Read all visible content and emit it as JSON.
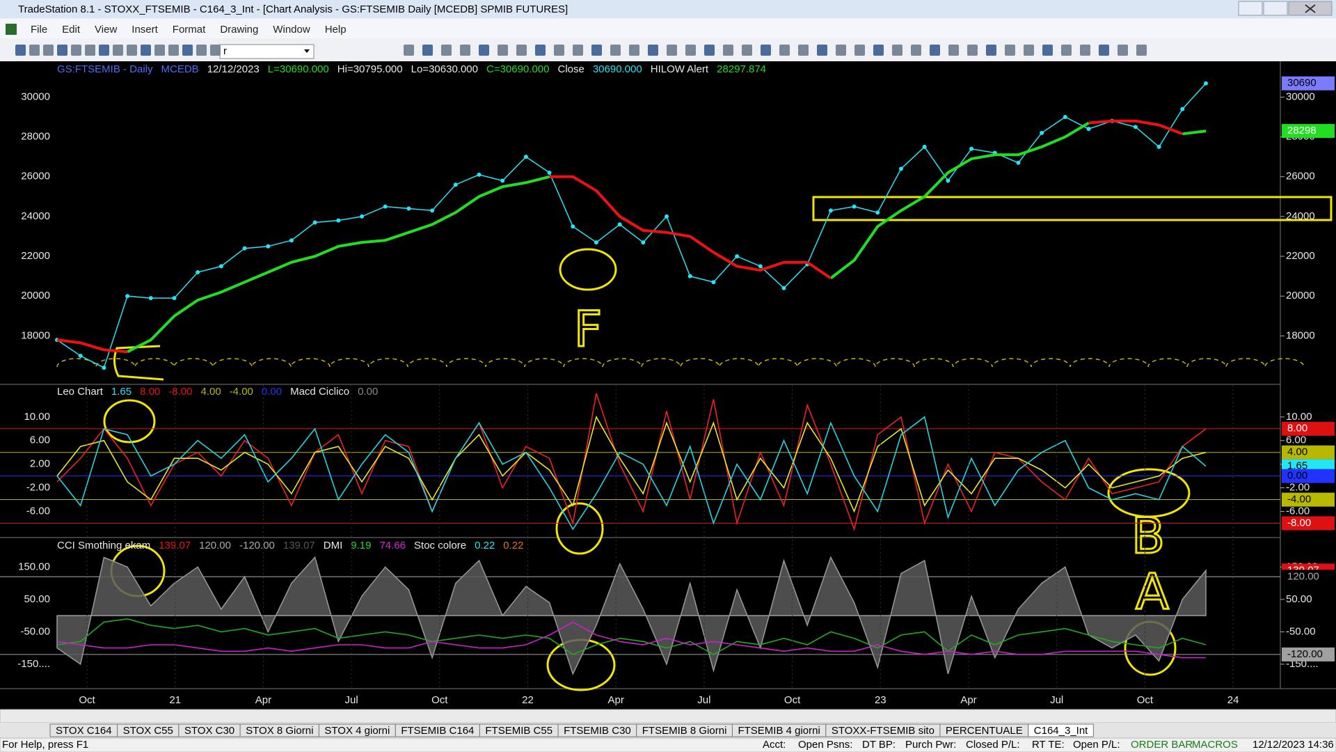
{
  "window": {
    "title": "TradeStation 8.1 - STOXX_FTSEMIB - C164_3_Int - [Chart Analysis - GS:FTSEMIB  Daily  [MCEDB] SPMIB FUTURES]"
  },
  "menu": [
    "File",
    "Edit",
    "View",
    "Insert",
    "Format",
    "Drawing",
    "Window",
    "Help"
  ],
  "toolbar": {
    "symbol_box": "r"
  },
  "time_axis": {
    "labels": [
      "Oct",
      "21",
      "Apr",
      "Jul",
      "Oct",
      "22",
      "Apr",
      "Jul",
      "Oct",
      "23",
      "Apr",
      "Jul",
      "Oct",
      "24"
    ]
  },
  "chart_data": [
    {
      "type": "line",
      "header": [
        {
          "text": "GS:FTSEMIB - Daily",
          "color": "#4f6cf5"
        },
        {
          "text": "MCEDB",
          "color": "#4f6cf5"
        },
        {
          "text": "12/12/2023",
          "color": "#e8e8e8"
        },
        {
          "text": "L=30690.000",
          "color": "#22dd22"
        },
        {
          "text": "Hi=30795.000",
          "color": "#e8e8e8"
        },
        {
          "text": "Lo=30630.000",
          "color": "#e8e8e8"
        },
        {
          "text": "C=30690.000",
          "color": "#22dd22"
        },
        {
          "text": "Close",
          "color": "#e8e8e8"
        },
        {
          "text": "30690.000",
          "color": "#22e5f5"
        },
        {
          "text": "HILOW Alert",
          "color": "#e8e8e8"
        },
        {
          "text": "28297.874",
          "color": "#22dd22"
        }
      ],
      "ylim": [
        15600,
        31800
      ],
      "yticks": [
        18000,
        20000,
        22000,
        24000,
        26000,
        28000,
        30000
      ],
      "series": [
        {
          "type": "dots",
          "color": "#22e5f5",
          "values": [
            17800,
            17000,
            16400,
            20000,
            19900,
            19900,
            21200,
            21500,
            22400,
            22500,
            22800,
            23700,
            23800,
            24000,
            24500,
            24400,
            24300,
            25600,
            26100,
            25800,
            27000,
            26200,
            23500,
            22700,
            23600,
            22700,
            24000,
            21000,
            20700,
            22000,
            21500,
            20400,
            21600,
            24300,
            24500,
            24200,
            26400,
            27500,
            25800,
            27400,
            27200,
            26700,
            28200,
            29000,
            28400,
            28800,
            28500,
            27500,
            29400,
            30690
          ]
        },
        {
          "type": "line",
          "color": "#22dd22",
          "values": [
            null,
            null,
            null,
            17200,
            17800,
            19000,
            19800,
            20200,
            20700,
            21200,
            21700,
            22000,
            22500,
            22700,
            22800,
            23200,
            23600,
            24200,
            25000,
            25500,
            25700,
            26000,
            null,
            null,
            null,
            null,
            null,
            null,
            null,
            null,
            null,
            null,
            null,
            20900,
            21800,
            23500,
            24300,
            25000,
            26200,
            26900,
            27100,
            27100,
            27500,
            28000,
            28700,
            null,
            null,
            null,
            28150,
            28298
          ]
        },
        {
          "type": "line",
          "color": "#ee1111",
          "values": [
            17800,
            17650,
            17300,
            17200,
            null,
            null,
            null,
            null,
            null,
            null,
            null,
            null,
            null,
            null,
            null,
            null,
            null,
            null,
            null,
            null,
            null,
            26000,
            26000,
            25300,
            24000,
            23300,
            23200,
            23000,
            22200,
            21500,
            21300,
            21700,
            21700,
            20900,
            null,
            null,
            null,
            null,
            null,
            null,
            null,
            null,
            null,
            null,
            28700,
            28800,
            28800,
            28600,
            28150,
            null
          ]
        }
      ],
      "badges": [
        {
          "value": 30690,
          "label": "30690",
          "color": "#7b7bff",
          "text_color": "#000000",
          "line": false
        },
        {
          "value": 28298,
          "label": "28298",
          "color": "#22dd22",
          "text_color": "#ffffff",
          "line": false
        }
      ],
      "annotation": "F"
    },
    {
      "type": "line",
      "header": [
        {
          "text": "Leo Chart",
          "color": "#e8e8e8"
        },
        {
          "text": "1.65",
          "color": "#22e5f5"
        },
        {
          "text": "8.00",
          "color": "#ee1111"
        },
        {
          "text": "-8.00",
          "color": "#ee1111"
        },
        {
          "text": "4.00",
          "color": "#b8b800"
        },
        {
          "text": "-4.00",
          "color": "#b8b800"
        },
        {
          "text": "0.00",
          "color": "#2233ff"
        },
        {
          "text": "Macd Ciclico",
          "color": "#e8e8e8"
        },
        {
          "text": "0.00",
          "color": "#888888"
        }
      ],
      "ylim": [
        -10.3,
        15.4
      ],
      "yticks": [
        {
          "value": 10,
          "label": "10.00"
        },
        {
          "value": 6,
          "label": "6.00"
        },
        {
          "value": 2,
          "label": "2.00"
        },
        {
          "value": -2,
          "label": "-2.00"
        },
        {
          "value": -6,
          "label": "-6.00"
        }
      ],
      "series": [
        {
          "type": "line",
          "color": "#ee2222",
          "values": [
            -1,
            3,
            8,
            3,
            -5,
            2,
            4,
            0,
            6,
            3,
            -5,
            4,
            7,
            -3,
            6,
            5,
            -6,
            3,
            9,
            -2,
            5,
            3,
            -8,
            14,
            2,
            -6,
            11,
            -4,
            13,
            -8,
            4,
            -5,
            12,
            2,
            -9,
            7,
            10,
            -8,
            2,
            -6,
            4,
            3,
            -1,
            -4,
            3,
            -3,
            -2,
            -1,
            5,
            8
          ]
        },
        {
          "type": "line",
          "color": "#e8e822",
          "values": [
            0,
            5,
            6,
            -1,
            -4,
            3,
            3,
            1,
            4,
            2,
            -3,
            4,
            5,
            -1,
            5,
            3,
            -4,
            3,
            7,
            0,
            4,
            1,
            -5,
            10,
            3,
            -3,
            9,
            -1,
            9,
            -4,
            3,
            -2,
            9,
            3,
            -6,
            5,
            8,
            -5,
            1,
            -3,
            3,
            3,
            1,
            -2,
            2,
            -2,
            -1,
            0,
            3,
            4
          ]
        },
        {
          "type": "line",
          "color": "#22d5e5",
          "values": [
            0,
            -5,
            8,
            7,
            0,
            2,
            6,
            3,
            7,
            -1,
            3,
            8,
            -4,
            2,
            7,
            4,
            -6,
            3,
            9,
            2,
            4,
            -2,
            -9,
            -3,
            4,
            2,
            -5,
            5,
            -8,
            2,
            -4,
            6,
            -3,
            9,
            0,
            -6,
            7,
            10,
            -7,
            3,
            -5,
            1,
            4,
            6,
            -2,
            -4,
            -3,
            -4,
            5,
            1.65
          ]
        }
      ],
      "badges": [
        {
          "value": 8,
          "label": "8.00",
          "color": "#dd1111",
          "text_color": "#ffffff",
          "line": true
        },
        {
          "value": 4,
          "label": "4.00",
          "color": "#b8b800",
          "text_color": "#000000",
          "line": true
        },
        {
          "value": 1.65,
          "label": "1.65",
          "color": "#22e5f5",
          "text_color": "#000000",
          "line": false
        },
        {
          "value": 0,
          "label": "0.00",
          "color": "#2233ff",
          "text_color": "#000000",
          "line": true
        },
        {
          "value": -4,
          "label": "-4.00",
          "color": "#b8b800",
          "text_color": "#000000",
          "line": true
        },
        {
          "value": -8,
          "label": "-8.00",
          "color": "#dd1111",
          "text_color": "#ffffff",
          "line": true
        }
      ],
      "annotation": "B"
    },
    {
      "type": "line",
      "header": [
        {
          "text": "CCI Smothing ekam",
          "color": "#e8e8e8"
        },
        {
          "text": "139.07",
          "color": "#ee1111"
        },
        {
          "text": "120.00",
          "color": "#aaaaaa"
        },
        {
          "text": "-120.00",
          "color": "#aaaaaa"
        },
        {
          "text": "139.07",
          "color": "#555555"
        },
        {
          "text": "DMI",
          "color": "#e8e8e8"
        },
        {
          "text": "9.19",
          "color": "#22dd22"
        },
        {
          "text": "74.66",
          "color": "#dd22dd"
        },
        {
          "text": "Stoc colore",
          "color": "#e8e8e8"
        },
        {
          "text": "0.22",
          "color": "#22e5f5"
        },
        {
          "text": "0.22",
          "color": "#e07020"
        }
      ],
      "ylim": [
        -225.5,
        236.7
      ],
      "yticks": [
        {
          "value": 150,
          "label": "150.00"
        },
        {
          "value": 50,
          "label": "50.00"
        },
        {
          "value": -50,
          "label": "-50.00"
        },
        {
          "value": -150,
          "label": "-150...."
        }
      ],
      "series": [
        {
          "type": "area",
          "color": "#9a9a9a",
          "values": [
            -100,
            -150,
            180,
            150,
            30,
            100,
            150,
            20,
            120,
            -50,
            100,
            180,
            -80,
            60,
            150,
            80,
            -130,
            100,
            170,
            0,
            90,
            40,
            -180,
            -30,
            160,
            20,
            -150,
            100,
            -170,
            80,
            -100,
            170,
            -30,
            180,
            40,
            -160,
            130,
            170,
            -180,
            60,
            -130,
            20,
            100,
            150,
            -60,
            -100,
            -60,
            -140,
            50,
            139.07
          ]
        },
        {
          "type": "line",
          "color": "#22aa22",
          "values": [
            -90,
            -80,
            -20,
            -10,
            -30,
            -40,
            -30,
            -50,
            -40,
            -60,
            -50,
            -40,
            -70,
            -60,
            -50,
            -60,
            -80,
            -70,
            -60,
            -70,
            -60,
            -70,
            -120,
            -90,
            -70,
            -80,
            -100,
            -80,
            -120,
            -80,
            -90,
            -70,
            -90,
            -50,
            -70,
            -100,
            -60,
            -50,
            -110,
            -60,
            -90,
            -60,
            -50,
            -40,
            -60,
            -80,
            -90,
            -100,
            -70,
            -90
          ]
        },
        {
          "type": "line",
          "color": "#cc22cc",
          "values": [
            -80,
            -90,
            -100,
            -100,
            -90,
            -90,
            -100,
            -110,
            -110,
            -100,
            -110,
            -100,
            -90,
            -90,
            -100,
            -100,
            -80,
            -90,
            -100,
            -100,
            -90,
            -60,
            -20,
            -60,
            -80,
            -90,
            -70,
            -90,
            -80,
            -90,
            -100,
            -110,
            -100,
            -110,
            -110,
            -90,
            -110,
            -120,
            -110,
            -120,
            -110,
            -120,
            -120,
            -110,
            -110,
            -110,
            -110,
            -120,
            -130,
            -130
          ]
        }
      ],
      "badges": [
        {
          "value": 139.07,
          "label": "139.07",
          "color": "#dd1111",
          "text_color": "#ffffff",
          "line": false
        },
        {
          "value": 120,
          "label": "120.00",
          "color": "#000000",
          "text_color": "#aaaaaa",
          "line": true
        },
        {
          "value": -120,
          "label": "-120.00",
          "color": "#a0a0a0",
          "text_color": "#000000",
          "line": true
        }
      ],
      "annotation": "A"
    }
  ],
  "tabs": [
    "STOX C164",
    "STOX C55",
    "STOX  C30",
    "STOX  8 Giorni",
    "STOX 4 giorni",
    "FTSEMIB C164",
    "FTSEMIB C55",
    "FTSEMIB C30",
    "FTSEMIB  8 Giorni",
    "FTSEMIB  4 giorni",
    "STOXX-FTSEMIB sito",
    "PERCENTUALE",
    "C164_3_Int"
  ],
  "status_bar": [
    "For Help, press F1",
    "Acct:",
    "Open Psns:",
    "DT BP:",
    "Purch Pwr:",
    "Closed P/L:",
    "RT TE:",
    "Open P/L:",
    "ORDER BAR",
    "MACROS",
    "12/12/2023 14:36"
  ]
}
